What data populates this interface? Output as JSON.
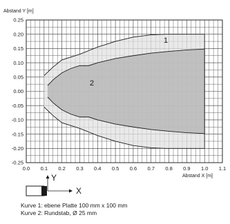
{
  "chart_data": {
    "type": "area",
    "xlabel": "Abstand X [m]",
    "ylabel": "Abstand Y [m]",
    "xlim": [
      0,
      1.1
    ],
    "ylim": [
      -0.25,
      0.25
    ],
    "x_ticks": [
      0.0,
      0.1,
      0.2,
      0.3,
      0.4,
      0.5,
      0.6,
      0.7,
      0.8,
      0.9,
      1.0,
      1.1
    ],
    "x_tick_labels": [
      "0.0",
      "0.1",
      "0.2",
      "0.3",
      "0.4",
      "0.5",
      "0.6",
      "0.7",
      "0.8",
      "0.9",
      "1.0",
      "1.1"
    ],
    "y_ticks": [
      -0.25,
      -0.2,
      -0.15,
      -0.1,
      -0.05,
      0.0,
      0.05,
      0.1,
      0.15,
      0.2,
      0.25
    ],
    "y_tick_labels": [
      "-0.25",
      "-0.20",
      "-0.15",
      "-0.10",
      "-0.05",
      "0.00",
      "0.05",
      "0.10",
      "0.15",
      "0.20",
      "0.25"
    ],
    "grid": true,
    "series": [
      {
        "name": "1",
        "color": "#e2e2e2",
        "x": [
          0.1,
          0.15,
          0.2,
          0.3,
          0.4,
          0.5,
          0.6,
          0.7,
          0.78,
          1.0
        ],
        "y_upper": [
          0.055,
          0.085,
          0.11,
          0.13,
          0.155,
          0.175,
          0.19,
          0.198,
          0.2,
          0.2
        ],
        "y_lower": [
          -0.055,
          -0.085,
          -0.11,
          -0.13,
          -0.155,
          -0.175,
          -0.19,
          -0.198,
          -0.2,
          -0.2
        ]
      },
      {
        "name": "2",
        "color": "#b9b9b9",
        "x": [
          0.12,
          0.15,
          0.2,
          0.25,
          0.3,
          0.35,
          0.4,
          0.5,
          0.6,
          0.7,
          0.8,
          0.9,
          1.0
        ],
        "y_upper": [
          0.02,
          0.04,
          0.065,
          0.08,
          0.09,
          0.09,
          0.1,
          0.115,
          0.125,
          0.134,
          0.14,
          0.145,
          0.148
        ],
        "y_lower": [
          -0.02,
          -0.04,
          -0.065,
          -0.08,
          -0.09,
          -0.09,
          -0.1,
          -0.115,
          -0.125,
          -0.134,
          -0.14,
          -0.145,
          -0.148
        ]
      }
    ]
  },
  "legend_symbols": {
    "x_label": "X",
    "y_label": "Y"
  },
  "captions": [
    "Kurve 1: ebene Platte 100 mm x 100 mm",
    "Kurve 2: Rundstab, Ø 25 mm"
  ]
}
